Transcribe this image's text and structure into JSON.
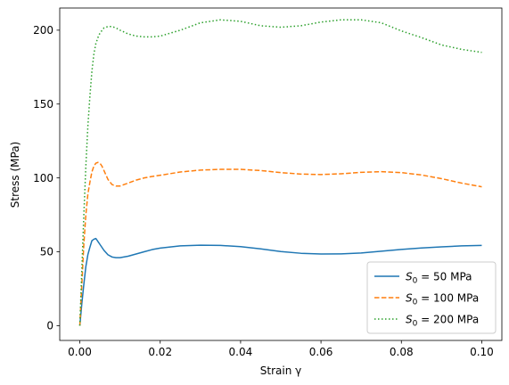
{
  "chart_data": {
    "type": "line",
    "title": "",
    "xlabel": "Strain γ",
    "ylabel": "Stress (MPa)",
    "xlim": [
      -0.005,
      0.105
    ],
    "ylim": [
      -10,
      215
    ],
    "xticks": [
      0.0,
      0.02,
      0.04,
      0.06,
      0.08,
      0.1
    ],
    "xtick_labels": [
      "0.00",
      "0.02",
      "0.04",
      "0.06",
      "0.08",
      "0.10"
    ],
    "yticks": [
      0,
      50,
      100,
      150,
      200
    ],
    "ytick_labels": [
      "0",
      "50",
      "100",
      "150",
      "200"
    ],
    "grid": false,
    "legend_position": "lower-right",
    "series": [
      {
        "name": "S0 = 50 MPa",
        "label_symbol": "S",
        "label_sub": "0",
        "label_rest": " = 50 MPa",
        "color": "#1f77b4",
        "dash": "solid",
        "x": [
          0,
          0.0005,
          0.001,
          0.0015,
          0.002,
          0.0025,
          0.003,
          0.0035,
          0.004,
          0.0045,
          0.005,
          0.006,
          0.007,
          0.008,
          0.009,
          0.01,
          0.012,
          0.014,
          0.016,
          0.018,
          0.02,
          0.025,
          0.03,
          0.035,
          0.04,
          0.045,
          0.05,
          0.055,
          0.06,
          0.065,
          0.07,
          0.075,
          0.08,
          0.085,
          0.09,
          0.095,
          0.1
        ],
        "y": [
          0,
          15,
          28,
          40,
          48,
          53,
          57.5,
          58.5,
          59,
          57,
          55,
          51,
          48,
          46.5,
          46,
          46,
          47,
          48.5,
          50,
          51.5,
          52.5,
          54,
          54.5,
          54.3,
          53.5,
          52,
          50.2,
          49,
          48.5,
          48.6,
          49.2,
          50.4,
          51.6,
          52.6,
          53.3,
          54,
          54.3
        ]
      },
      {
        "name": "S0 = 100 MPa",
        "label_symbol": "S",
        "label_sub": "0",
        "label_rest": " = 100 MPa",
        "color": "#ff7f0e",
        "dash": "dashed",
        "x": [
          0,
          0.0005,
          0.001,
          0.0015,
          0.002,
          0.0025,
          0.003,
          0.0035,
          0.004,
          0.0045,
          0.005,
          0.0055,
          0.006,
          0.007,
          0.008,
          0.009,
          0.01,
          0.011,
          0.012,
          0.014,
          0.016,
          0.018,
          0.02,
          0.025,
          0.03,
          0.035,
          0.04,
          0.045,
          0.05,
          0.055,
          0.06,
          0.065,
          0.07,
          0.075,
          0.08,
          0.085,
          0.09,
          0.095,
          0.1
        ],
        "y": [
          0,
          28,
          55,
          75,
          89,
          97,
          104,
          108,
          110,
          110.5,
          110,
          108,
          105,
          99,
          95.5,
          94.5,
          94.5,
          95.5,
          96.5,
          98.5,
          100,
          101,
          101.8,
          104,
          105.3,
          105.8,
          105.8,
          105,
          103.6,
          102.6,
          102.3,
          102.8,
          103.8,
          104.2,
          103.6,
          102,
          99.5,
          96.5,
          94
        ]
      },
      {
        "name": "S0 = 200 MPa",
        "label_symbol": "S",
        "label_sub": "0",
        "label_rest": " = 200 MPa",
        "color": "#2ca02c",
        "dash": "dotted",
        "x": [
          0,
          0.0005,
          0.001,
          0.0015,
          0.002,
          0.0025,
          0.003,
          0.0035,
          0.004,
          0.0045,
          0.005,
          0.006,
          0.007,
          0.008,
          0.009,
          0.01,
          0.012,
          0.014,
          0.016,
          0.018,
          0.02,
          0.025,
          0.03,
          0.035,
          0.04,
          0.045,
          0.05,
          0.055,
          0.06,
          0.065,
          0.07,
          0.075,
          0.08,
          0.085,
          0.09,
          0.095,
          0.1
        ],
        "y": [
          0,
          38,
          75,
          108,
          135,
          155,
          172,
          184,
          191,
          195,
          198,
          201.5,
          202.5,
          202.5,
          201.5,
          200,
          197.5,
          196,
          195.5,
          195.5,
          196,
          200,
          205,
          207,
          206,
          203,
          202,
          203,
          205.5,
          207,
          207,
          205,
          199.5,
          195,
          190,
          187,
          185
        ]
      }
    ]
  }
}
